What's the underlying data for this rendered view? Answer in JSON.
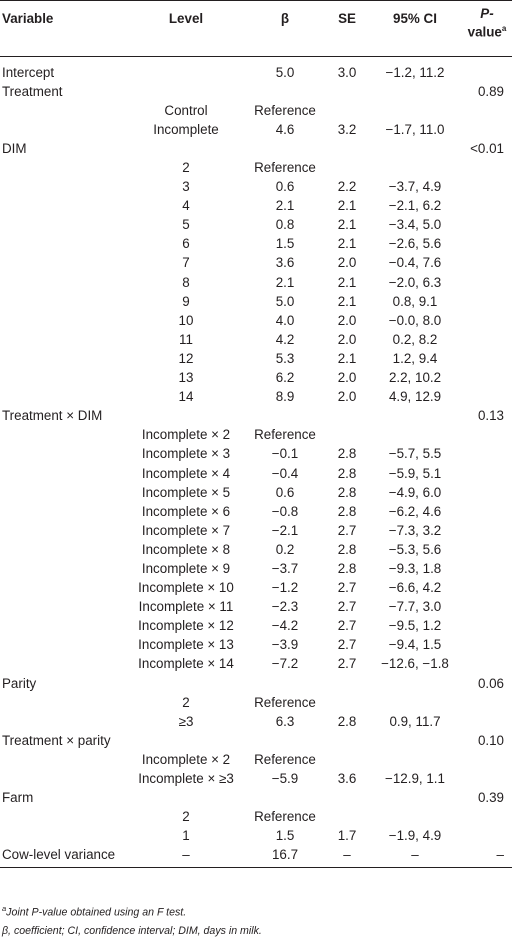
{
  "table": {
    "headers": {
      "variable": "Variable",
      "level": "Level",
      "beta": "β",
      "se": "SE",
      "ci": "95% CI",
      "p_main": "P-",
      "p_rest": "value",
      "p_sup": "a"
    },
    "rows": [
      {
        "variable": "Intercept",
        "level": "",
        "beta": "5.0",
        "se": "3.0",
        "ci": "−1.2, 11.2",
        "p": ""
      },
      {
        "variable": "Treatment",
        "level": "",
        "beta": "",
        "se": "",
        "ci": "",
        "p": "0.89"
      },
      {
        "variable": "",
        "level": "Control",
        "beta": "Reference",
        "se": "",
        "ci": "",
        "p": ""
      },
      {
        "variable": "",
        "level": "Incomplete",
        "beta": "4.6",
        "se": "3.2",
        "ci": "−1.7, 11.0",
        "p": ""
      },
      {
        "variable": "DIM",
        "level": "",
        "beta": "",
        "se": "",
        "ci": "",
        "p": "<0.01"
      },
      {
        "variable": "",
        "level": "2",
        "beta": "Reference",
        "se": "",
        "ci": "",
        "p": ""
      },
      {
        "variable": "",
        "level": "3",
        "beta": "0.6",
        "se": "2.2",
        "ci": "−3.7, 4.9",
        "p": ""
      },
      {
        "variable": "",
        "level": "4",
        "beta": "2.1",
        "se": "2.1",
        "ci": "−2.1, 6.2",
        "p": ""
      },
      {
        "variable": "",
        "level": "5",
        "beta": "0.8",
        "se": "2.1",
        "ci": "−3.4, 5.0",
        "p": ""
      },
      {
        "variable": "",
        "level": "6",
        "beta": "1.5",
        "se": "2.1",
        "ci": "−2.6, 5.6",
        "p": ""
      },
      {
        "variable": "",
        "level": "7",
        "beta": "3.6",
        "se": "2.0",
        "ci": "−0.4, 7.6",
        "p": ""
      },
      {
        "variable": "",
        "level": "8",
        "beta": "2.1",
        "se": "2.1",
        "ci": "−2.0, 6.3",
        "p": ""
      },
      {
        "variable": "",
        "level": "9",
        "beta": "5.0",
        "se": "2.1",
        "ci": "0.8, 9.1",
        "p": ""
      },
      {
        "variable": "",
        "level": "10",
        "beta": "4.0",
        "se": "2.0",
        "ci": "−0.0, 8.0",
        "p": ""
      },
      {
        "variable": "",
        "level": "11",
        "beta": "4.2",
        "se": "2.0",
        "ci": "0.2, 8.2",
        "p": ""
      },
      {
        "variable": "",
        "level": "12",
        "beta": "5.3",
        "se": "2.1",
        "ci": "1.2, 9.4",
        "p": ""
      },
      {
        "variable": "",
        "level": "13",
        "beta": "6.2",
        "se": "2.0",
        "ci": "2.2, 10.2",
        "p": ""
      },
      {
        "variable": "",
        "level": "14",
        "beta": "8.9",
        "se": "2.0",
        "ci": "4.9, 12.9",
        "p": ""
      },
      {
        "variable": "Treatment × DIM",
        "level": "",
        "beta": "",
        "se": "",
        "ci": "",
        "p": "0.13"
      },
      {
        "variable": "",
        "level": "Incomplete × 2",
        "beta": "Reference",
        "se": "",
        "ci": "",
        "p": ""
      },
      {
        "variable": "",
        "level": "Incomplete × 3",
        "beta": "−0.1",
        "se": "2.8",
        "ci": "−5.7, 5.5",
        "p": ""
      },
      {
        "variable": "",
        "level": "Incomplete × 4",
        "beta": "−0.4",
        "se": "2.8",
        "ci": "−5.9, 5.1",
        "p": ""
      },
      {
        "variable": "",
        "level": "Incomplete × 5",
        "beta": "0.6",
        "se": "2.8",
        "ci": "−4.9, 6.0",
        "p": ""
      },
      {
        "variable": "",
        "level": "Incomplete × 6",
        "beta": "−0.8",
        "se": "2.8",
        "ci": "−6.2, 4.6",
        "p": ""
      },
      {
        "variable": "",
        "level": "Incomplete × 7",
        "beta": "−2.1",
        "se": "2.7",
        "ci": "−7.3, 3.2",
        "p": ""
      },
      {
        "variable": "",
        "level": "Incomplete × 8",
        "beta": "0.2",
        "se": "2.8",
        "ci": "−5.3, 5.6",
        "p": ""
      },
      {
        "variable": "",
        "level": "Incomplete × 9",
        "beta": "−3.7",
        "se": "2.8",
        "ci": "−9.3, 1.8",
        "p": ""
      },
      {
        "variable": "",
        "level": "Incomplete × 10",
        "beta": "−1.2",
        "se": "2.7",
        "ci": "−6.6, 4.2",
        "p": ""
      },
      {
        "variable": "",
        "level": "Incomplete × 11",
        "beta": "−2.3",
        "se": "2.7",
        "ci": "−7.7, 3.0",
        "p": ""
      },
      {
        "variable": "",
        "level": "Incomplete × 12",
        "beta": "−4.2",
        "se": "2.7",
        "ci": "−9.5, 1.2",
        "p": ""
      },
      {
        "variable": "",
        "level": "Incomplete × 13",
        "beta": "−3.9",
        "se": "2.7",
        "ci": "−9.4, 1.5",
        "p": ""
      },
      {
        "variable": "",
        "level": "Incomplete × 14",
        "beta": "−7.2",
        "se": "2.7",
        "ci": "−12.6, −1.8",
        "p": ""
      },
      {
        "variable": "Parity",
        "level": "",
        "beta": "",
        "se": "",
        "ci": "",
        "p": "0.06"
      },
      {
        "variable": "",
        "level": "2",
        "beta": "Reference",
        "se": "",
        "ci": "",
        "p": ""
      },
      {
        "variable": "",
        "level": "≥3",
        "beta": "6.3",
        "se": "2.8",
        "ci": "0.9, 11.7",
        "p": ""
      },
      {
        "variable": "Treatment × parity",
        "level": "",
        "beta": "",
        "se": "",
        "ci": "",
        "p": "0.10"
      },
      {
        "variable": "",
        "level": "Incomplete × 2",
        "beta": "Reference",
        "se": "",
        "ci": "",
        "p": ""
      },
      {
        "variable": "",
        "level": "Incomplete × ≥3",
        "beta": "−5.9",
        "se": "3.6",
        "ci": "−12.9, 1.1",
        "p": ""
      },
      {
        "variable": "Farm",
        "level": "",
        "beta": "",
        "se": "",
        "ci": "",
        "p": "0.39"
      },
      {
        "variable": "",
        "level": "2",
        "beta": "Reference",
        "se": "",
        "ci": "",
        "p": ""
      },
      {
        "variable": "",
        "level": "1",
        "beta": "1.5",
        "se": "1.7",
        "ci": "−1.9, 4.9",
        "p": ""
      },
      {
        "variable": "Cow-level variance",
        "level": "–",
        "beta": "16.7",
        "se": "–",
        "ci": "–",
        "p": "–"
      }
    ]
  },
  "footnotes": {
    "a_sup": "a",
    "a_text": "Joint P-value obtained using an F test.",
    "abbrev": "β, coefficient; CI, confidence interval; DIM, days in milk."
  }
}
